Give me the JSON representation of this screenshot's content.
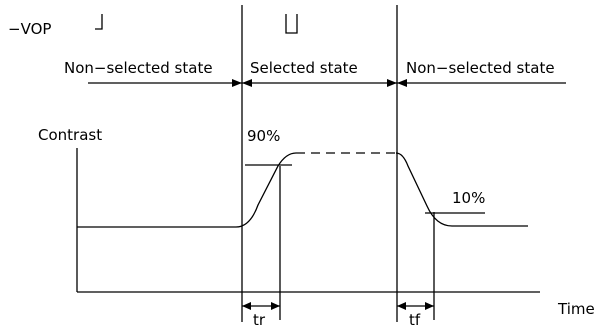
{
  "labels": {
    "vop": "−VOP",
    "state_left": "Non−selected state",
    "state_middle": "Selected state",
    "state_right": "Non−selected state",
    "contrast": "Contrast",
    "pct_90": "90%",
    "pct_10": "10%",
    "time": "Time",
    "tr": "tr",
    "tf": "tf"
  },
  "colors": {
    "stroke": "#000000",
    "background": "#ffffff"
  }
}
